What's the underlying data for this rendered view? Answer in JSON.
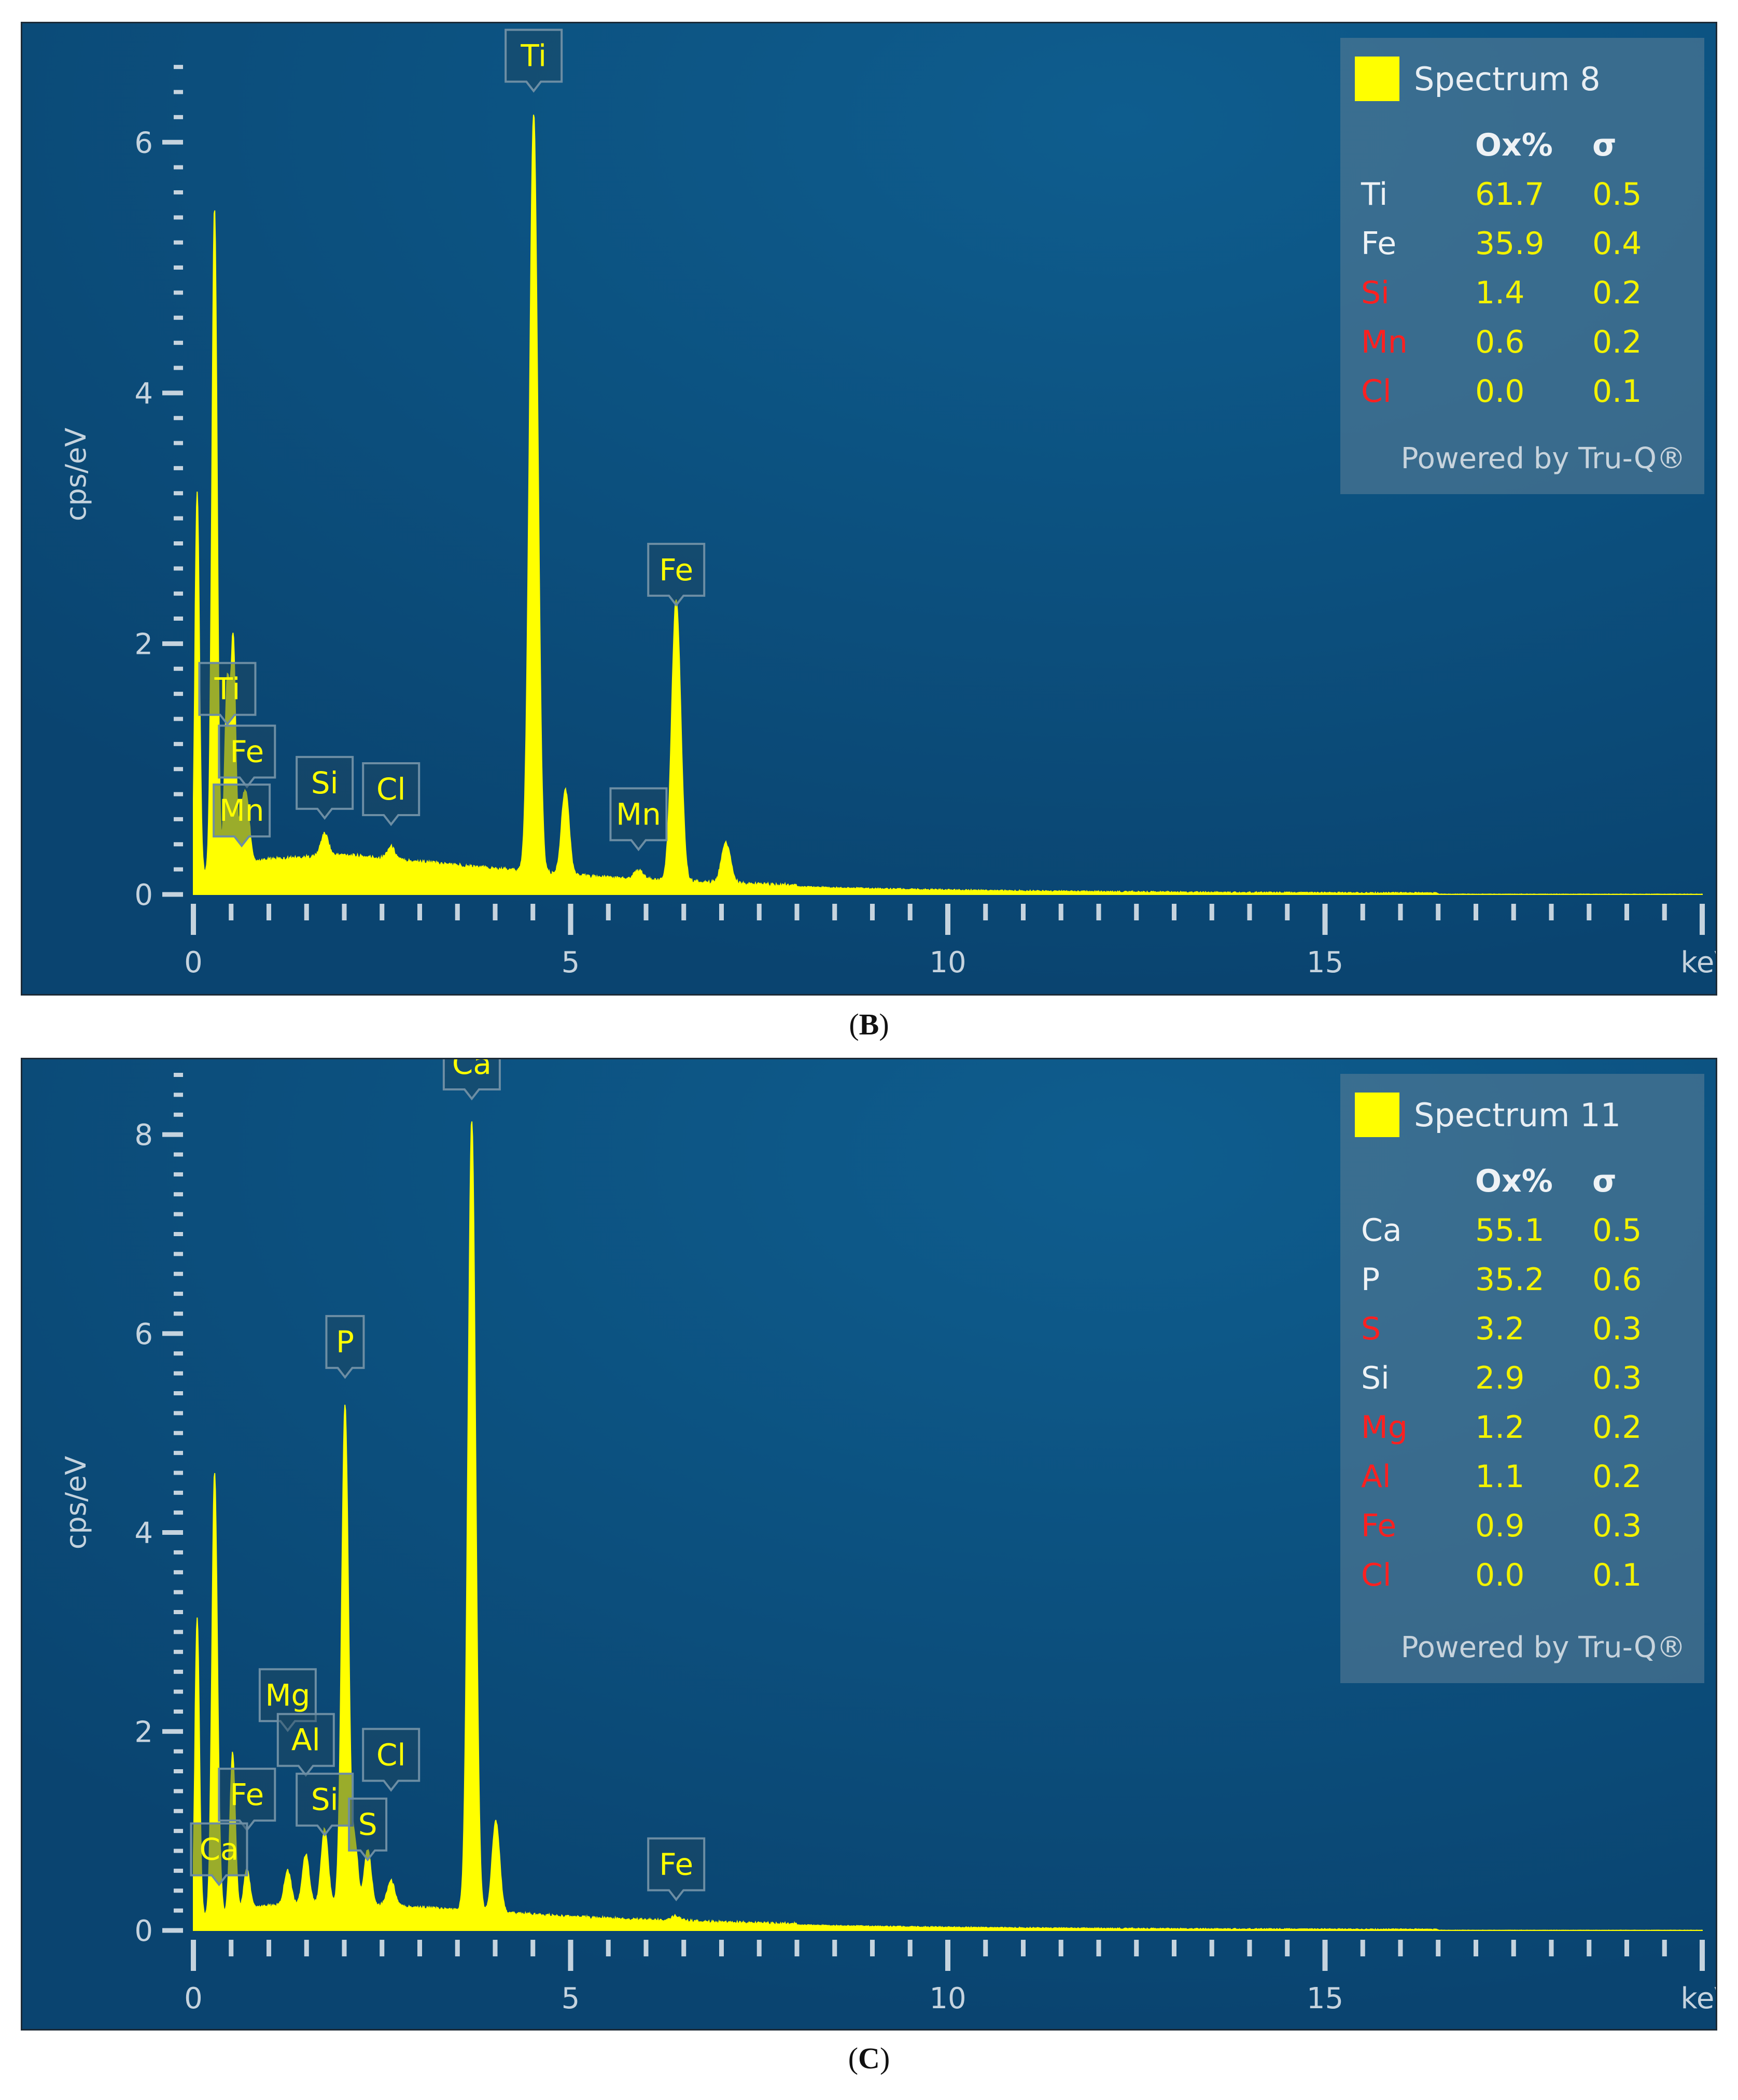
{
  "panels": [
    {
      "caption": "B",
      "legend": {
        "spectrum": "Spectrum 8",
        "header_ox": "Ox%",
        "header_sigma": "σ",
        "rows": [
          {
            "el": "Ti",
            "ox": "61.7",
            "sigma": "0.5",
            "color": "#eef2f5"
          },
          {
            "el": "Fe",
            "ox": "35.9",
            "sigma": "0.4",
            "color": "#eef2f5"
          },
          {
            "el": "Si",
            "ox": "1.4",
            "sigma": "0.2",
            "color": "#ff2020"
          },
          {
            "el": "Mn",
            "ox": "0.6",
            "sigma": "0.2",
            "color": "#ff2020"
          },
          {
            "el": "Cl",
            "ox": "0.0",
            "sigma": "0.1",
            "color": "#ff2020"
          }
        ],
        "powered": "Powered by Tru-Q®"
      }
    },
    {
      "caption": "C",
      "legend": {
        "spectrum": "Spectrum 11",
        "header_ox": "Ox%",
        "header_sigma": "σ",
        "rows": [
          {
            "el": "Ca",
            "ox": "55.1",
            "sigma": "0.5",
            "color": "#eef2f5"
          },
          {
            "el": "P",
            "ox": "35.2",
            "sigma": "0.6",
            "color": "#eef2f5"
          },
          {
            "el": "S",
            "ox": "3.2",
            "sigma": "0.3",
            "color": "#ff2020"
          },
          {
            "el": "Si",
            "ox": "2.9",
            "sigma": "0.3",
            "color": "#eef2f5"
          },
          {
            "el": "Mg",
            "ox": "1.2",
            "sigma": "0.2",
            "color": "#ff2020"
          },
          {
            "el": "Al",
            "ox": "1.1",
            "sigma": "0.2",
            "color": "#ff2020"
          },
          {
            "el": "Fe",
            "ox": "0.9",
            "sigma": "0.3",
            "color": "#ff2020"
          },
          {
            "el": "Cl",
            "ox": "0.0",
            "sigma": "0.1",
            "color": "#ff2020"
          }
        ],
        "powered": "Powered by Tru-Q®"
      }
    }
  ],
  "chart_data": [
    {
      "type": "area",
      "ylabel": "cps/eV",
      "xlabel": "keV",
      "xlim": [
        0,
        20
      ],
      "ylim": [
        0,
        6.7
      ],
      "xticks": [
        0,
        5,
        10,
        15
      ],
      "yticks": [
        0,
        2,
        4,
        6
      ],
      "series_color": "#ffff00",
      "background": "#0b4f7c",
      "background_level": 0.25,
      "peaks": [
        {
          "x": 0.05,
          "y": 3.05,
          "w": 0.03
        },
        {
          "x": 0.28,
          "y": 5.3,
          "w": 0.035
        },
        {
          "x": 0.45,
          "y": 1.5,
          "w": 0.035
        },
        {
          "x": 0.53,
          "y": 1.75,
          "w": 0.03
        },
        {
          "x": 0.64,
          "y": 0.4,
          "w": 0.04
        },
        {
          "x": 0.71,
          "y": 0.45,
          "w": 0.04
        },
        {
          "x": 1.74,
          "y": 0.18,
          "w": 0.05
        },
        {
          "x": 2.62,
          "y": 0.1,
          "w": 0.05
        },
        {
          "x": 4.51,
          "y": 6.05,
          "w": 0.055
        },
        {
          "x": 4.93,
          "y": 0.68,
          "w": 0.05
        },
        {
          "x": 5.9,
          "y": 0.07,
          "w": 0.06
        },
        {
          "x": 6.4,
          "y": 2.25,
          "w": 0.06
        },
        {
          "x": 7.06,
          "y": 0.32,
          "w": 0.06
        }
      ],
      "peak_labels": [
        {
          "label": "Ti",
          "x": 4.51,
          "y": 6.4
        },
        {
          "label": "Fe",
          "x": 6.4,
          "y": 2.3
        },
        {
          "label": "Ti",
          "x": 0.45,
          "y": 1.35
        },
        {
          "label": "Fe",
          "x": 0.71,
          "y": 0.85
        },
        {
          "label": "Mn",
          "x": 0.64,
          "y": 0.38
        },
        {
          "label": "Si",
          "x": 1.74,
          "y": 0.6
        },
        {
          "label": "Cl",
          "x": 2.62,
          "y": 0.55
        },
        {
          "label": "Mn",
          "x": 5.9,
          "y": 0.35
        }
      ]
    },
    {
      "type": "area",
      "ylabel": "cps/eV",
      "xlabel": "keV",
      "xlim": [
        0,
        20
      ],
      "ylim": [
        0,
        8.6
      ],
      "xticks": [
        0,
        5,
        10,
        15
      ],
      "yticks": [
        0,
        2,
        4,
        6,
        8
      ],
      "series_color": "#ffff00",
      "background": "#0b4f7c",
      "background_level": 0.22,
      "peaks": [
        {
          "x": 0.05,
          "y": 3.0,
          "w": 0.03
        },
        {
          "x": 0.28,
          "y": 4.4,
          "w": 0.035
        },
        {
          "x": 0.52,
          "y": 1.6,
          "w": 0.035
        },
        {
          "x": 0.34,
          "y": 0.35,
          "w": 0.03
        },
        {
          "x": 0.71,
          "y": 0.4,
          "w": 0.04
        },
        {
          "x": 1.25,
          "y": 0.35,
          "w": 0.045
        },
        {
          "x": 1.49,
          "y": 0.5,
          "w": 0.045
        },
        {
          "x": 1.74,
          "y": 0.75,
          "w": 0.045
        },
        {
          "x": 2.01,
          "y": 5.0,
          "w": 0.045
        },
        {
          "x": 2.14,
          "y": 0.6,
          "w": 0.04
        },
        {
          "x": 2.31,
          "y": 0.55,
          "w": 0.045
        },
        {
          "x": 2.62,
          "y": 0.25,
          "w": 0.05
        },
        {
          "x": 3.69,
          "y": 7.95,
          "w": 0.05
        },
        {
          "x": 4.01,
          "y": 0.92,
          "w": 0.05
        },
        {
          "x": 6.4,
          "y": 0.05,
          "w": 0.06
        }
      ],
      "peak_labels": [
        {
          "label": "Ca",
          "x": 3.69,
          "y": 8.35
        },
        {
          "label": "P",
          "x": 2.01,
          "y": 5.55
        },
        {
          "label": "Mg",
          "x": 1.25,
          "y": 2.0
        },
        {
          "label": "Al",
          "x": 1.49,
          "y": 1.55
        },
        {
          "label": "Cl",
          "x": 2.62,
          "y": 1.4
        },
        {
          "label": "Fe",
          "x": 0.71,
          "y": 1.0
        },
        {
          "label": "Si",
          "x": 1.74,
          "y": 0.95
        },
        {
          "label": "S",
          "x": 2.31,
          "y": 0.7
        },
        {
          "label": "Ca",
          "x": 0.34,
          "y": 0.45
        },
        {
          "label": "Fe",
          "x": 6.4,
          "y": 0.3
        }
      ]
    }
  ]
}
